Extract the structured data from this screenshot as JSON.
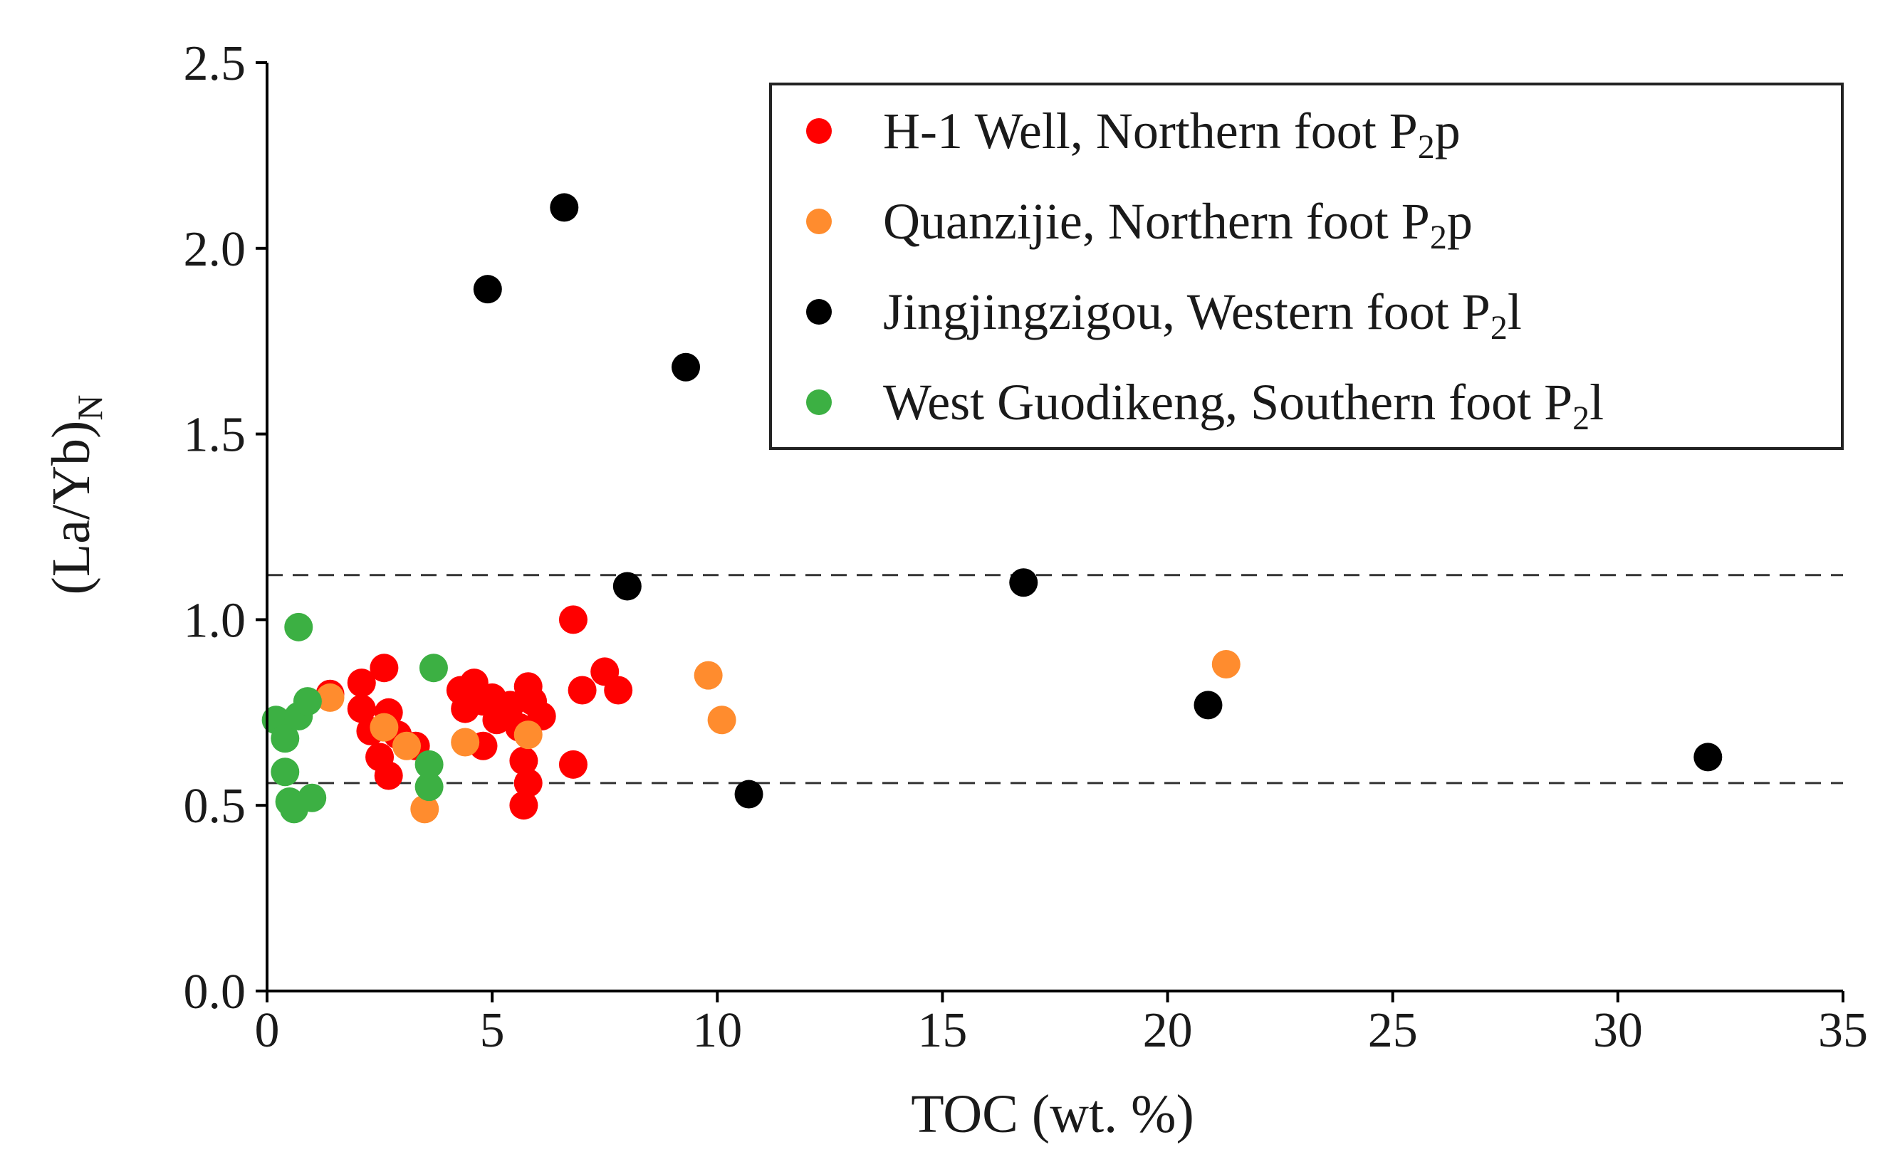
{
  "chart_data": {
    "type": "scatter",
    "xlabel": "TOC (wt. %)",
    "ylabel": "(La/Yb)",
    "ylabel_subscript": "N",
    "xlim": [
      0,
      35
    ],
    "ylim": [
      0,
      2.5
    ],
    "x_ticks": [
      "0",
      "5",
      "10",
      "15",
      "20",
      "25",
      "30",
      "35"
    ],
    "y_ticks": [
      "0.0",
      "0.5",
      "1.0",
      "1.5",
      "2.0",
      "2.5"
    ],
    "grid": false,
    "legend_position": "top-right",
    "reference_lines_y": [
      1.12,
      0.56
    ],
    "series": [
      {
        "name": "H-1  Well, Northern  foot  P2p",
        "label_main": "H-1  Well, Northern  foot  P",
        "label_sub": "2",
        "label_tail": "p",
        "color": "#ff0000",
        "points": [
          [
            1.4,
            0.8
          ],
          [
            2.1,
            0.83
          ],
          [
            2.1,
            0.76
          ],
          [
            2.3,
            0.7
          ],
          [
            2.6,
            0.87
          ],
          [
            2.5,
            0.63
          ],
          [
            2.7,
            0.58
          ],
          [
            2.7,
            0.75
          ],
          [
            2.9,
            0.69
          ],
          [
            3.3,
            0.66
          ],
          [
            4.3,
            0.81
          ],
          [
            4.4,
            0.76
          ],
          [
            4.6,
            0.83
          ],
          [
            4.8,
            0.78
          ],
          [
            4.8,
            0.66
          ],
          [
            5.0,
            0.79
          ],
          [
            5.1,
            0.73
          ],
          [
            5.4,
            0.77
          ],
          [
            5.6,
            0.71
          ],
          [
            5.7,
            0.62
          ],
          [
            5.7,
            0.5
          ],
          [
            5.8,
            0.82
          ],
          [
            5.8,
            0.56
          ],
          [
            5.9,
            0.78
          ],
          [
            6.1,
            0.74
          ],
          [
            6.8,
            1.0
          ],
          [
            6.8,
            0.61
          ],
          [
            7.0,
            0.81
          ],
          [
            7.5,
            0.86
          ],
          [
            7.8,
            0.81
          ]
        ]
      },
      {
        "name": "Quanzijie, Northern foot P2p",
        "label_main": "Quanzijie, Northern foot P",
        "label_sub": "2",
        "label_tail": "p",
        "color": "#ff8c2e",
        "points": [
          [
            1.4,
            0.79
          ],
          [
            2.6,
            0.71
          ],
          [
            3.1,
            0.66
          ],
          [
            3.5,
            0.49
          ],
          [
            4.4,
            0.67
          ],
          [
            5.8,
            0.69
          ],
          [
            9.8,
            0.85
          ],
          [
            10.1,
            0.73
          ],
          [
            21.3,
            0.88
          ]
        ]
      },
      {
        "name": "Jingjingzigou, Western  foot  P2l",
        "label_main": "Jingjingzigou, Western  foot  P",
        "label_sub": "2",
        "label_tail": "l",
        "color": "#000000",
        "points": [
          [
            4.9,
            1.89
          ],
          [
            6.6,
            2.11
          ],
          [
            9.3,
            1.68
          ],
          [
            8.0,
            1.09
          ],
          [
            10.7,
            0.53
          ],
          [
            16.8,
            1.1
          ],
          [
            20.9,
            0.77
          ],
          [
            32.0,
            0.63
          ]
        ]
      },
      {
        "name": "West  Guodikeng, Southern foot P2l",
        "label_main": "West  Guodikeng, Southern foot P",
        "label_sub": "2",
        "label_tail": "l",
        "color": "#3cb043",
        "points": [
          [
            0.2,
            0.73
          ],
          [
            0.4,
            0.68
          ],
          [
            0.4,
            0.59
          ],
          [
            0.5,
            0.51
          ],
          [
            0.6,
            0.49
          ],
          [
            0.7,
            0.98
          ],
          [
            0.7,
            0.74
          ],
          [
            0.9,
            0.78
          ],
          [
            1.0,
            0.52
          ],
          [
            3.6,
            0.55
          ],
          [
            3.6,
            0.61
          ],
          [
            3.7,
            0.87
          ]
        ]
      }
    ]
  }
}
